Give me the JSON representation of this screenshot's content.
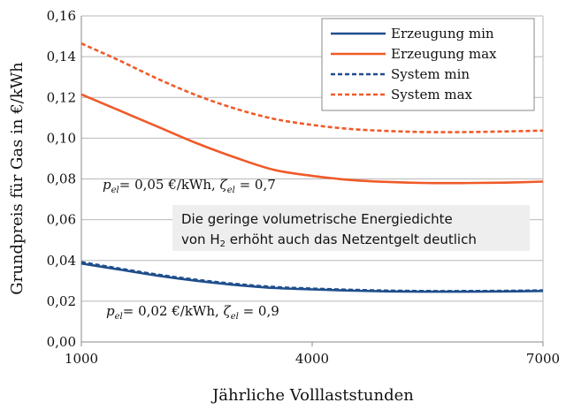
{
  "chart_data": {
    "type": "line",
    "xlabel": "Jährliche Volllaststunden",
    "ylabel": "Grundpreis für Gas in €/kWh",
    "xlim": [
      1000,
      7000
    ],
    "ylim": [
      0,
      0.16
    ],
    "x_ticks": [
      1000,
      4000,
      7000
    ],
    "x_tick_labels": [
      "1000",
      "4000",
      "7000"
    ],
    "y_ticks": [
      0,
      0.02,
      0.04,
      0.06,
      0.08,
      0.1,
      0.12,
      0.14,
      0.16
    ],
    "y_tick_labels": [
      "0,00",
      "0,02",
      "0,04",
      "0,06",
      "0,08",
      "0,10",
      "0,12",
      "0,14",
      "0,16"
    ],
    "grid": "horizontal",
    "legend_position": "top-right",
    "series": [
      {
        "name": "Erzeugung min",
        "color": "#1f4e8c",
        "dash": "solid",
        "x": [
          1000,
          1500,
          2000,
          2500,
          3000,
          3500,
          4000,
          4500,
          5000,
          5500,
          6000,
          6500,
          7000
        ],
        "y": [
          0.0385,
          0.0355,
          0.0325,
          0.03,
          0.028,
          0.0265,
          0.0258,
          0.0252,
          0.0248,
          0.0247,
          0.0247,
          0.0248,
          0.025
        ]
      },
      {
        "name": "Erzeugung max",
        "color": "#f05a28",
        "dash": "solid",
        "x": [
          1000,
          1500,
          2000,
          2500,
          3000,
          3500,
          4000,
          4500,
          5000,
          5500,
          6000,
          6500,
          7000
        ],
        "y": [
          0.1215,
          0.1135,
          0.1055,
          0.0975,
          0.0905,
          0.0845,
          0.0815,
          0.0795,
          0.0785,
          0.078,
          0.078,
          0.0782,
          0.0787
        ]
      },
      {
        "name": "System min",
        "color": "#1f4e8c",
        "dash": "dashed",
        "x": [
          1000,
          1500,
          2000,
          2500,
          3000,
          3500,
          4000,
          4500,
          5000,
          5500,
          6000,
          6500,
          7000
        ],
        "y": [
          0.0392,
          0.036,
          0.033,
          0.0305,
          0.0285,
          0.027,
          0.0262,
          0.0256,
          0.0252,
          0.025,
          0.025,
          0.0251,
          0.0253
        ]
      },
      {
        "name": "System max",
        "color": "#f05a28",
        "dash": "dashed",
        "x": [
          1000,
          1500,
          2000,
          2500,
          3000,
          3500,
          4000,
          4500,
          5000,
          5500,
          6000,
          6500,
          7000
        ],
        "y": [
          0.1465,
          0.138,
          0.129,
          0.121,
          0.1145,
          0.1095,
          0.1065,
          0.1045,
          0.1035,
          0.103,
          0.103,
          0.1033,
          0.1037
        ]
      }
    ],
    "annotations": [
      {
        "id": "upper",
        "p_symbol": "p",
        "p_sub": "el",
        "p_text": "= 0,05 €/kWh, ",
        "zeta_symbol": "ζ",
        "zeta_sub": "el",
        "zeta_text": " = 0,7"
      },
      {
        "id": "lower",
        "p_symbol": "p",
        "p_sub": "el",
        "p_text": "= 0,02 €/kWh, ",
        "zeta_symbol": "ζ",
        "zeta_sub": "el",
        "zeta_text": " = 0,9"
      }
    ],
    "textbox": {
      "line1": "Die geringe volumetrische Energiedichte",
      "line2_pre": "von H",
      "line2_sub": "2",
      "line2_post": " erhöht auch das Netzentgelt deutlich"
    }
  }
}
